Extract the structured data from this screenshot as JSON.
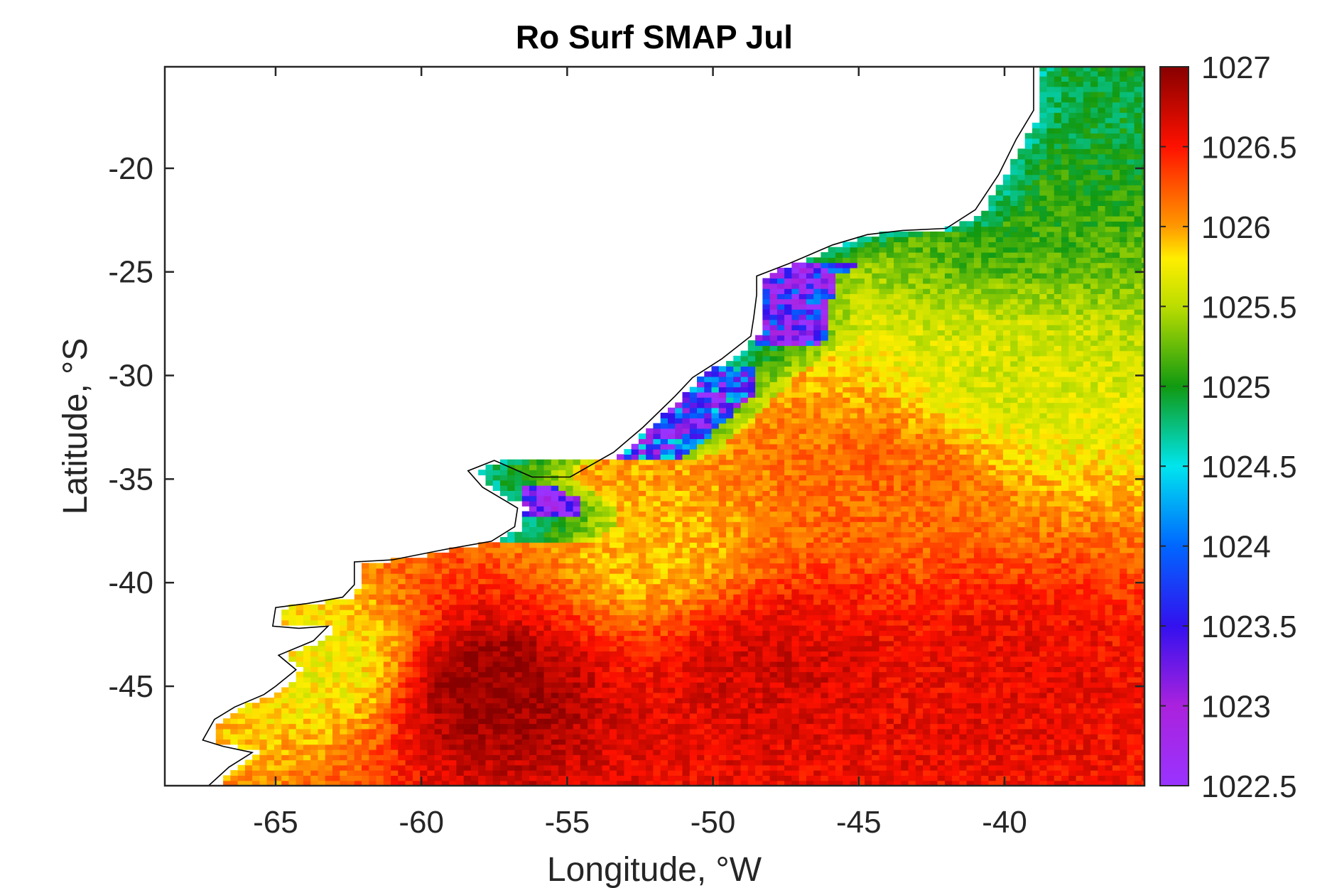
{
  "chart_data": {
    "type": "heatmap",
    "title": "Ro Surf SMAP Jul",
    "xlabel": "Longitude, °W",
    "ylabel": "Latitude, °S",
    "xlim": [
      -68.8,
      -35.2
    ],
    "ylim": [
      -49.8,
      -15.1
    ],
    "x_ticks": [
      -65,
      -60,
      -55,
      -50,
      -45,
      -40
    ],
    "y_ticks": [
      -20,
      -25,
      -30,
      -35,
      -40,
      -45
    ],
    "x_tick_labels": [
      "-65",
      "-60",
      "-55",
      "-50",
      "-45",
      "-40"
    ],
    "y_tick_labels": [
      "-20",
      "-25",
      "-30",
      "-35",
      "-40",
      "-45"
    ],
    "colorbar": {
      "range": [
        1022.5,
        1027
      ],
      "ticks": [
        1027,
        1026.5,
        1026,
        1025.5,
        1025,
        1024.5,
        1024,
        1023.5,
        1023,
        1022.5
      ],
      "tick_labels": [
        "1027",
        "1026.5",
        "1026",
        "1025.5",
        "1025",
        "1024.5",
        "1024",
        "1023.5",
        "1023",
        "1022.5"
      ],
      "colormap": [
        {
          "value": 1022.5,
          "color": "#9933ff"
        },
        {
          "value": 1023.0,
          "color": "#aa22dd"
        },
        {
          "value": 1023.5,
          "color": "#3311ee"
        },
        {
          "value": 1024.0,
          "color": "#0066ff"
        },
        {
          "value": 1024.5,
          "color": "#00e5ee"
        },
        {
          "value": 1025.0,
          "color": "#119911"
        },
        {
          "value": 1025.5,
          "color": "#bbdd00"
        },
        {
          "value": 1025.8,
          "color": "#ffee00"
        },
        {
          "value": 1026.0,
          "color": "#ff9900"
        },
        {
          "value": 1026.5,
          "color": "#ff1100"
        },
        {
          "value": 1027.0,
          "color": "#880000"
        }
      ]
    },
    "grid": false,
    "coastline": [
      [
        -67.3,
        -49.8
      ],
      [
        -66.6,
        -48.9
      ],
      [
        -65.8,
        -48.2
      ],
      [
        -66.8,
        -47.9
      ],
      [
        -67.5,
        -47.6
      ],
      [
        -67.1,
        -46.6
      ],
      [
        -66.4,
        -46.0
      ],
      [
        -65.4,
        -45.4
      ],
      [
        -65.0,
        -45.0
      ],
      [
        -64.3,
        -44.2
      ],
      [
        -64.9,
        -43.5
      ],
      [
        -63.7,
        -42.8
      ],
      [
        -63.2,
        -42.1
      ],
      [
        -64.2,
        -42.2
      ],
      [
        -65.1,
        -42.1
      ],
      [
        -65.0,
        -41.2
      ],
      [
        -63.9,
        -41.0
      ],
      [
        -62.7,
        -40.7
      ],
      [
        -62.3,
        -40.1
      ],
      [
        -62.3,
        -39.0
      ],
      [
        -61.0,
        -38.9
      ],
      [
        -59.2,
        -38.4
      ],
      [
        -57.6,
        -38.0
      ],
      [
        -56.8,
        -37.3
      ],
      [
        -56.7,
        -36.4
      ],
      [
        -57.3,
        -35.9
      ],
      [
        -57.9,
        -35.4
      ],
      [
        -58.4,
        -34.6
      ],
      [
        -57.5,
        -34.1
      ],
      [
        -56.2,
        -34.9
      ],
      [
        -54.9,
        -34.9
      ],
      [
        -53.4,
        -33.7
      ],
      [
        -52.4,
        -32.5
      ],
      [
        -51.3,
        -31.0
      ],
      [
        -50.7,
        -30.1
      ],
      [
        -49.7,
        -29.2
      ],
      [
        -48.7,
        -28.1
      ],
      [
        -48.6,
        -27.2
      ],
      [
        -48.5,
        -26.1
      ],
      [
        -48.5,
        -25.2
      ],
      [
        -47.4,
        -24.6
      ],
      [
        -45.9,
        -23.7
      ],
      [
        -44.7,
        -23.2
      ],
      [
        -43.5,
        -23.0
      ],
      [
        -42.0,
        -22.9
      ],
      [
        -41.0,
        -22.0
      ],
      [
        -40.2,
        -20.3
      ],
      [
        -39.6,
        -18.6
      ],
      [
        -39.0,
        -17.2
      ],
      [
        -39.0,
        -15.1
      ]
    ],
    "low_density_zones": [
      {
        "lon": [
          -56.5,
          -54.5
        ],
        "lat": [
          -36.9,
          -35.3
        ],
        "value_range": [
          1022.5,
          1023.5
        ]
      },
      {
        "lon": [
          -53.5,
          -48.5
        ],
        "lat": [
          -34.5,
          -29.5
        ],
        "value_range": [
          1022.5,
          1024.5
        ]
      },
      {
        "lon": [
          -48.5,
          -44.5
        ],
        "lat": [
          -28.5,
          -24.5
        ],
        "value_range": [
          1022.5,
          1024.0
        ]
      }
    ],
    "field_model": [
      {
        "lon": -58.0,
        "lat": -45.0,
        "value": 1027.0
      },
      {
        "lon": -48.0,
        "lat": -44.0,
        "value": 1026.7
      },
      {
        "lon": -40.0,
        "lat": -45.0,
        "value": 1026.6
      },
      {
        "lon": -52.0,
        "lat": -38.5,
        "value": 1025.9
      },
      {
        "lon": -44.0,
        "lat": -35.0,
        "value": 1026.2
      },
      {
        "lon": -40.0,
        "lat": -30.0,
        "value": 1025.6
      },
      {
        "lon": -40.0,
        "lat": -22.0,
        "value": 1025.1
      },
      {
        "lon": -37.0,
        "lat": -17.0,
        "value": 1024.9
      },
      {
        "lon": -63.0,
        "lat": -44.0,
        "value": 1025.7
      }
    ]
  }
}
